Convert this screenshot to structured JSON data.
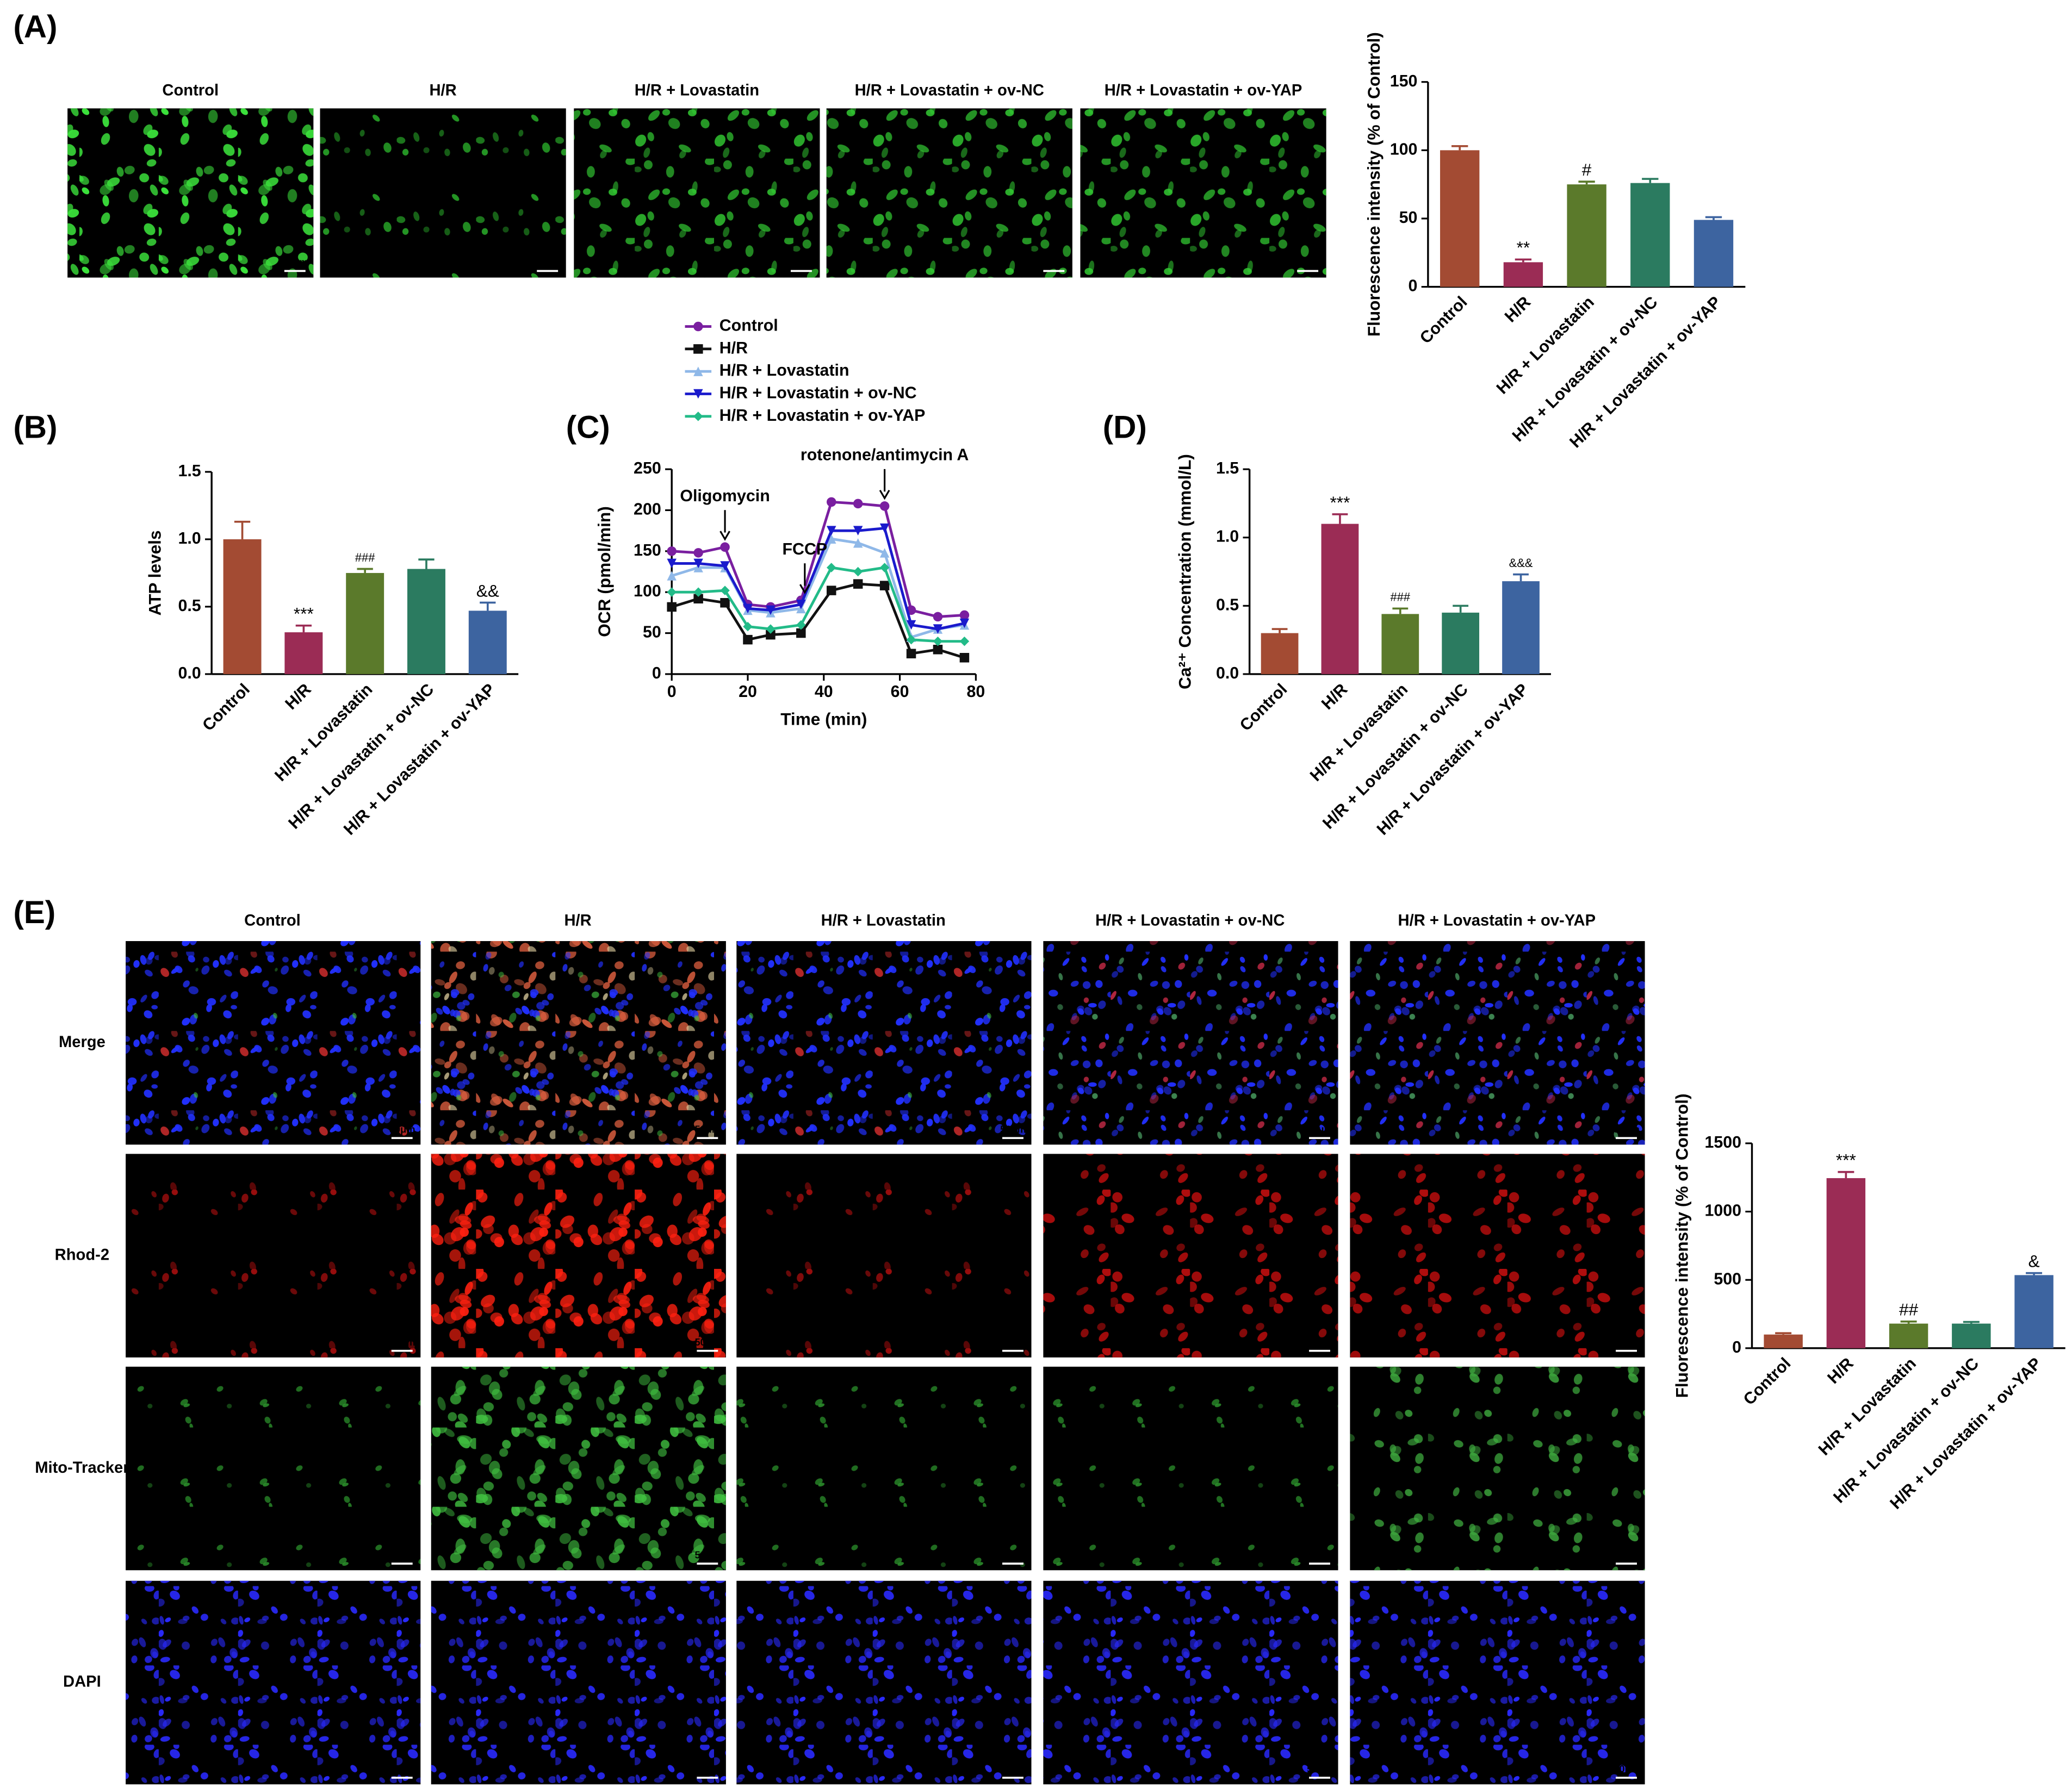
{
  "panel_labels": [
    "(A)",
    "(B)",
    "(C)",
    "(D)",
    "(E)"
  ],
  "scale_bar": "50μm",
  "panel_a_images": {
    "titles": [
      "Control",
      "H/R",
      "H/R + Lovastatin",
      "H/R + Lovastatin + ov-NC",
      "H/R + Lovastatin + ov-YAP"
    ]
  },
  "panel_e_images": {
    "titles": [
      "Control",
      "H/R",
      "H/R + Lovastatin",
      "H/R + Lovastatin + ov-NC",
      "H/R + Lovastatin + ov-YAP"
    ],
    "rows": [
      "Merge",
      "Rhod-2",
      "Mito-Tracker",
      "DAPI"
    ]
  },
  "chart_data": [
    {
      "type": "bar",
      "ylabel": "Fluorescence intensity (% of Control)",
      "categories": [
        "Control",
        "H/R",
        "H/R + Lovastatin",
        "H/R + Lovastatin + ov-NC",
        "H/R + Lovastatin + ov-YAP"
      ],
      "values": [
        100,
        18,
        75,
        76,
        49
      ],
      "errors": [
        3,
        2,
        2,
        3,
        2
      ],
      "annotations": [
        null,
        "**",
        "#",
        null,
        null
      ],
      "colors": [
        "#a34b33",
        "#9b2c55",
        "#5b7a2b",
        "#2b7b60",
        "#3d64a0"
      ],
      "ylim": [
        0,
        150
      ],
      "yticks": [
        0,
        50,
        100,
        150
      ],
      "grid": false
    },
    {
      "type": "bar",
      "ylabel": "ATP levels",
      "categories": [
        "Control",
        "H/R",
        "H/R + Lovastatin",
        "H/R + Lovastatin + ov-NC",
        "H/R + Lovastatin + ov-YAP"
      ],
      "values": [
        1.0,
        0.31,
        0.75,
        0.78,
        0.47
      ],
      "errors": [
        0.13,
        0.05,
        0.03,
        0.07,
        0.06
      ],
      "annotations": [
        null,
        "***",
        "###",
        null,
        "&&"
      ],
      "colors": [
        "#a34b33",
        "#9b2c55",
        "#5b7a2b",
        "#2b7b60",
        "#3d64a0"
      ],
      "ylim": [
        0,
        1.5
      ],
      "yticks": [
        {
          "value": 0,
          "label": "0.0"
        },
        0.5,
        {
          "value": 1,
          "label": "1.0"
        },
        1.5
      ],
      "grid": false
    },
    {
      "type": "line",
      "xlabel": "Time (min)",
      "ylabel": "OCR (pmol/min)",
      "x": [
        0,
        7,
        14,
        20,
        26,
        34,
        42,
        49,
        56,
        63,
        70,
        77
      ],
      "series": [
        {
          "name": "Control",
          "color": "#7a1fa0",
          "marker": "circle",
          "values": [
            150,
            148,
            155,
            85,
            82,
            90,
            210,
            208,
            205,
            78,
            70,
            72
          ]
        },
        {
          "name": "H/R",
          "color": "#111111",
          "marker": "square",
          "values": [
            82,
            92,
            87,
            42,
            48,
            50,
            102,
            110,
            108,
            25,
            30,
            20
          ]
        },
        {
          "name": "H/R + Lovastatin",
          "color": "#8fb8e8",
          "marker": "triangle",
          "values": [
            120,
            130,
            130,
            78,
            75,
            80,
            165,
            160,
            148,
            45,
            55,
            60
          ]
        },
        {
          "name": "H/R + Lovastatin + ov-NC",
          "color": "#1a1acc",
          "marker": "triangle-down",
          "values": [
            135,
            135,
            132,
            80,
            78,
            85,
            175,
            175,
            178,
            60,
            55,
            62
          ]
        },
        {
          "name": "H/R + Lovastatin + ov-YAP",
          "color": "#22bb88",
          "marker": "diamond",
          "values": [
            100,
            100,
            102,
            58,
            55,
            60,
            130,
            125,
            130,
            42,
            40,
            40
          ]
        }
      ],
      "annotations": [
        {
          "text": "Oligomycin",
          "x": 14
        },
        {
          "text": "FCCP",
          "x": 35
        },
        {
          "text": "rotenone/antimycin A",
          "x": 56
        }
      ],
      "xlim": [
        0,
        80
      ],
      "xticks": [
        0,
        20,
        40,
        60,
        80
      ],
      "ylim": [
        0,
        250
      ],
      "yticks": [
        0,
        50,
        100,
        150,
        200,
        250
      ],
      "grid": false
    },
    {
      "type": "bar",
      "ylabel": "Ca²⁺ Concentration (mmol/L)",
      "categories": [
        "Control",
        "H/R",
        "H/R + Lovastatin",
        "H/R + Lovastatin + ov-NC",
        "H/R + Lovastatin + ov-YAP"
      ],
      "values": [
        0.3,
        1.1,
        0.44,
        0.45,
        0.68
      ],
      "errors": [
        0.03,
        0.07,
        0.04,
        0.05,
        0.05
      ],
      "annotations": [
        null,
        "***",
        "###",
        null,
        "&&&"
      ],
      "colors": [
        "#a34b33",
        "#9b2c55",
        "#5b7a2b",
        "#2b7b60",
        "#3d64a0"
      ],
      "ylim": [
        0,
        1.5
      ],
      "yticks": [
        {
          "value": 0,
          "label": "0.0"
        },
        0.5,
        {
          "value": 1,
          "label": "1.0"
        },
        1.5
      ],
      "grid": false
    },
    {
      "type": "bar",
      "ylabel": "Fluorescence intensity (% of Control)",
      "categories": [
        "Control",
        "H/R",
        "H/R + Lovastatin",
        "H/R + Lovastatin + ov-NC",
        "H/R + Lovastatin + ov-YAP"
      ],
      "values": [
        100,
        1245,
        180,
        180,
        535
      ],
      "errors": [
        10,
        45,
        15,
        12,
        15
      ],
      "annotations": [
        null,
        "***",
        "##",
        null,
        "&"
      ],
      "colors": [
        "#a34b33",
        "#9b2c55",
        "#5b7a2b",
        "#2b7b60",
        "#3d64a0"
      ],
      "ylim": [
        0,
        1500
      ],
      "yticks": [
        0,
        500,
        1000,
        1500
      ],
      "grid": false
    }
  ]
}
